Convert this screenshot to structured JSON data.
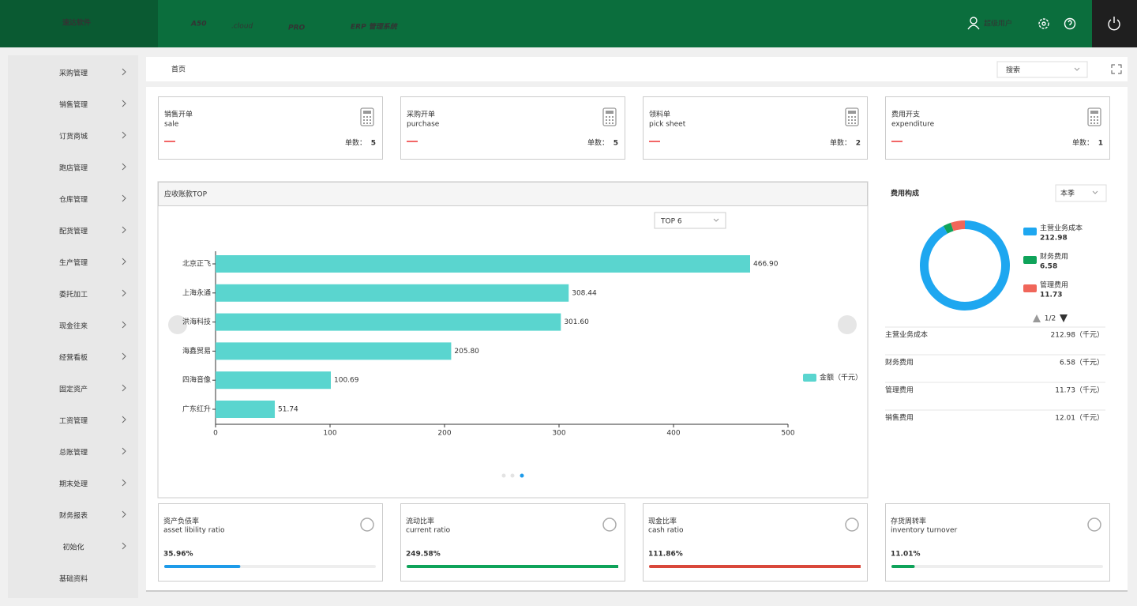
{
  "header": {
    "brand": "速达软件",
    "product": "A50",
    "product_suffix": ".cloud",
    "edition": "PRO",
    "system": "ERP 管理系统",
    "user": "超级用户"
  },
  "sidebar": {
    "items": [
      "采购管理",
      "销售管理",
      "订货商城",
      "跑店管理",
      "仓库管理",
      "配货管理",
      "生产管理",
      "委托加工",
      "现金往来",
      "经营看板",
      "固定资产",
      "工资管理",
      "总账管理",
      "期末处理",
      "财务报表",
      "初始化",
      "基础资料"
    ]
  },
  "breadcrumb": "首页",
  "search_placeholder": "搜索",
  "cards": [
    {
      "title": "销售开单",
      "subtitle": "sale",
      "count_label": "单数：",
      "count": 5
    },
    {
      "title": "采购开单",
      "subtitle": "purchase",
      "count_label": "单数：",
      "count": 5
    },
    {
      "title": "领料单",
      "subtitle": "pick sheet",
      "count_label": "单数：",
      "count": 2
    },
    {
      "title": "费用开支",
      "subtitle": "expenditure",
      "count_label": "单数：",
      "count": 1
    }
  ],
  "receivables_filter": "TOP 6",
  "chart_data": [
    {
      "type": "bar",
      "orientation": "horizontal",
      "title": "应收账款TOP",
      "categories": [
        "北京正飞",
        "上海永通",
        "洪海科技",
        "海鑫贸易",
        "四海音像",
        "广东红升"
      ],
      "series": [
        {
          "name": "金额（千元）",
          "color": "#5ad5cf",
          "values": [
            466.9,
            308.44,
            301.6,
            205.8,
            100.69,
            51.74
          ],
          "value_labels": [
            "466.90",
            "308.44",
            "301.60",
            "205.80",
            "100.69",
            "51.74"
          ]
        }
      ],
      "xlim": [
        0,
        500
      ],
      "xticks": [
        0,
        100,
        200,
        300,
        400,
        500
      ]
    },
    {
      "type": "donut",
      "title": "费用构成",
      "period": "本季",
      "categories": [
        "主营业务成本",
        "财务费用",
        "管理费用"
      ],
      "values": [
        212.98,
        6.58,
        11.73
      ],
      "colors": [
        "#1ea7f0",
        "#0fa35a",
        "#f0665a"
      ],
      "pager": "1/2"
    }
  ],
  "expense_table": {
    "rows": [
      [
        "主营业务成本",
        "212.98（千元）"
      ],
      [
        "财务费用",
        "6.58（千元）"
      ],
      [
        "管理费用",
        "11.73（千元）"
      ],
      [
        "销售费用",
        "12.01（千元）"
      ]
    ]
  },
  "ratios": [
    {
      "title": "资产负债率",
      "subtitle": "asset libility ratio",
      "value": 35.96,
      "value_label": "35.96%",
      "color": "#1e9be9"
    },
    {
      "title": "流动比率",
      "subtitle": "current ratio",
      "value": 249.58,
      "value_label": "249.58%",
      "color": "#0fa35a"
    },
    {
      "title": "现金比率",
      "subtitle": "cash ratio",
      "value": 111.86,
      "value_label": "111.86%",
      "color": "#d9483b"
    },
    {
      "title": "存货周转率",
      "subtitle": "inventory turnover",
      "value": 11.01,
      "value_label": "11.01%",
      "color": "#0fa35a"
    }
  ]
}
